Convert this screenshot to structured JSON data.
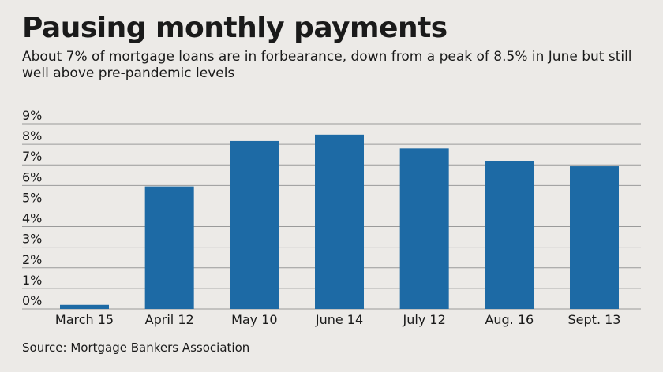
{
  "header": {
    "title": "Pausing monthly payments",
    "subtitle": "About 7% of mortgage loans are in forbearance, down from a peak of 8.5% in June but still well above pre-pandemic levels"
  },
  "footer": {
    "source": "Source: Mortgage Bankers Association"
  },
  "colors": {
    "bar": "#1d6aa5",
    "grid": "#9a9a9a",
    "background": "#eceae7"
  },
  "chart_data": {
    "type": "bar",
    "categories": [
      "March 15",
      "April 12",
      "May 10",
      "June 14",
      "July 12",
      "Aug. 16",
      "Sept. 13"
    ],
    "values": [
      0.2,
      5.95,
      8.16,
      8.47,
      7.8,
      7.2,
      6.93
    ],
    "ylim": [
      0,
      9
    ],
    "yticks": [
      0,
      1,
      2,
      3,
      4,
      5,
      6,
      7,
      8,
      9
    ],
    "ytick_labels": [
      "0%",
      "1%",
      "2%",
      "3%",
      "4%",
      "5%",
      "6%",
      "7%",
      "8%",
      "9%"
    ],
    "grid": true
  }
}
